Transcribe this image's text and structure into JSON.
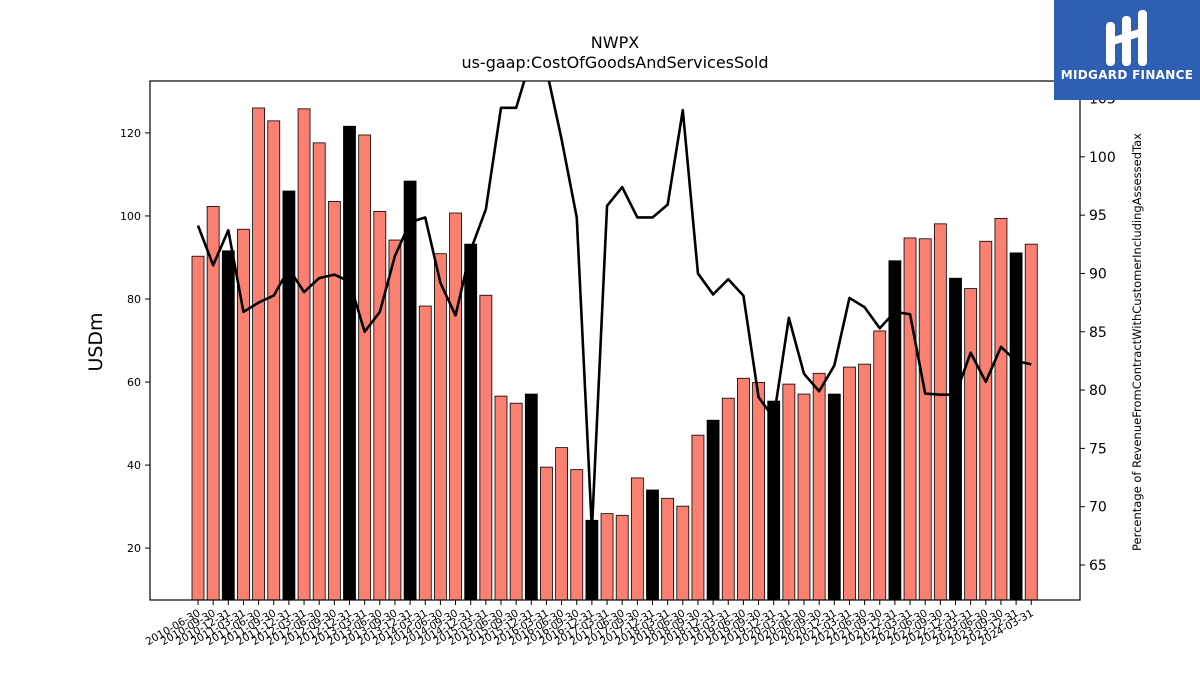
{
  "chart_data": {
    "type": "bar",
    "title": "NWPX",
    "subtitle": "us-gaap:CostOfGoodsAndServicesSold",
    "ylabel": "USDm",
    "y2label": "Percentage of RevenueFromContractWithCustomerIncludingAssessedTax",
    "ylim": [
      7.5,
      132.5
    ],
    "y2lim": [
      62,
      106.5
    ],
    "yticks": [
      20,
      40,
      60,
      80,
      100,
      120
    ],
    "y2ticks": [
      65,
      70,
      75,
      80,
      85,
      90,
      95,
      100,
      105
    ],
    "categories": [
      "2010-06-30",
      "2010-09-30",
      "2010-12-31",
      "2011-03-31",
      "2011-06-30",
      "2011-09-30",
      "2011-12-31",
      "2012-03-31",
      "2012-06-30",
      "2012-09-30",
      "2012-12-31",
      "2013-03-31",
      "2013-06-30",
      "2013-09-30",
      "2013-12-31",
      "2014-03-31",
      "2014-06-30",
      "2014-09-30",
      "2014-12-31",
      "2015-03-31",
      "2015-06-30",
      "2015-09-30",
      "2015-12-31",
      "2016-03-31",
      "2016-06-30",
      "2016-09-30",
      "2016-12-31",
      "2017-03-31",
      "2017-06-30",
      "2017-09-30",
      "2017-12-31",
      "2018-03-31",
      "2018-06-30",
      "2018-09-30",
      "2018-12-31",
      "2019-03-31",
      "2019-06-30",
      "2019-09-30",
      "2019-12-31",
      "2020-03-31",
      "2020-06-30",
      "2020-09-30",
      "2020-12-31",
      "2021-03-31",
      "2021-06-30",
      "2021-09-30",
      "2021-12-31",
      "2022-03-31",
      "2022-06-30",
      "2022-09-30",
      "2022-12-31",
      "2023-03-31",
      "2023-06-30",
      "2023-09-30",
      "2023-12-31",
      "2024-03-31"
    ],
    "series": [
      {
        "type": "bar",
        "values": [
          90.3,
          102.3,
          91.6,
          96.8,
          126.0,
          122.9,
          106.0,
          125.8,
          117.6,
          103.5,
          121.6,
          119.5,
          101.1,
          94.2,
          108.4,
          78.3,
          90.9,
          100.7,
          93.2,
          80.9,
          56.6,
          54.9,
          57.1,
          39.5,
          44.2,
          38.9,
          26.7,
          28.3,
          27.9,
          36.9,
          34.0,
          32.0,
          30.1,
          47.2,
          50.8,
          56.1,
          60.9,
          59.9,
          55.4,
          59.5,
          57.1,
          62.1,
          57.1,
          63.6,
          64.3,
          72.3,
          89.2,
          94.7,
          94.5,
          98.1,
          85.0,
          82.5,
          93.9,
          99.4,
          91.1,
          93.2
        ],
        "highlight": [
          false,
          false,
          true,
          false,
          false,
          false,
          true,
          false,
          false,
          false,
          true,
          false,
          false,
          false,
          true,
          false,
          false,
          false,
          true,
          false,
          false,
          false,
          true,
          false,
          false,
          false,
          true,
          false,
          false,
          false,
          true,
          false,
          false,
          false,
          true,
          false,
          false,
          false,
          true,
          false,
          false,
          false,
          true,
          false,
          false,
          false,
          true,
          false,
          false,
          false,
          true,
          false,
          false,
          false,
          true,
          false
        ]
      },
      {
        "type": "line",
        "axis": "right",
        "values": [
          94.1,
          90.7,
          93.7,
          86.7,
          87.5,
          88.1,
          90.4,
          88.4,
          89.6,
          89.9,
          89.3,
          85.0,
          86.7,
          91.5,
          94.4,
          94.8,
          89.2,
          86.4,
          92.0,
          95.5,
          104.2,
          104.2,
          108.5,
          107.5,
          101.5,
          94.8,
          68.0,
          95.8,
          97.4,
          94.8,
          94.8,
          95.9,
          104.0,
          90.0,
          88.2,
          89.5,
          88.1,
          79.4,
          77.6,
          86.2,
          81.4,
          79.9,
          82.1,
          87.9,
          87.1,
          85.3,
          86.7,
          86.5,
          79.7,
          79.6,
          79.6,
          83.2,
          80.7,
          83.7,
          82.5,
          82.2
        ]
      }
    ],
    "colors": {
      "bar": "#fa8072",
      "highlight": "#000000",
      "line": "#000000"
    }
  },
  "logo": {
    "name": "MIDGARD FINANCE",
    "bg": "#2f5fb3"
  }
}
